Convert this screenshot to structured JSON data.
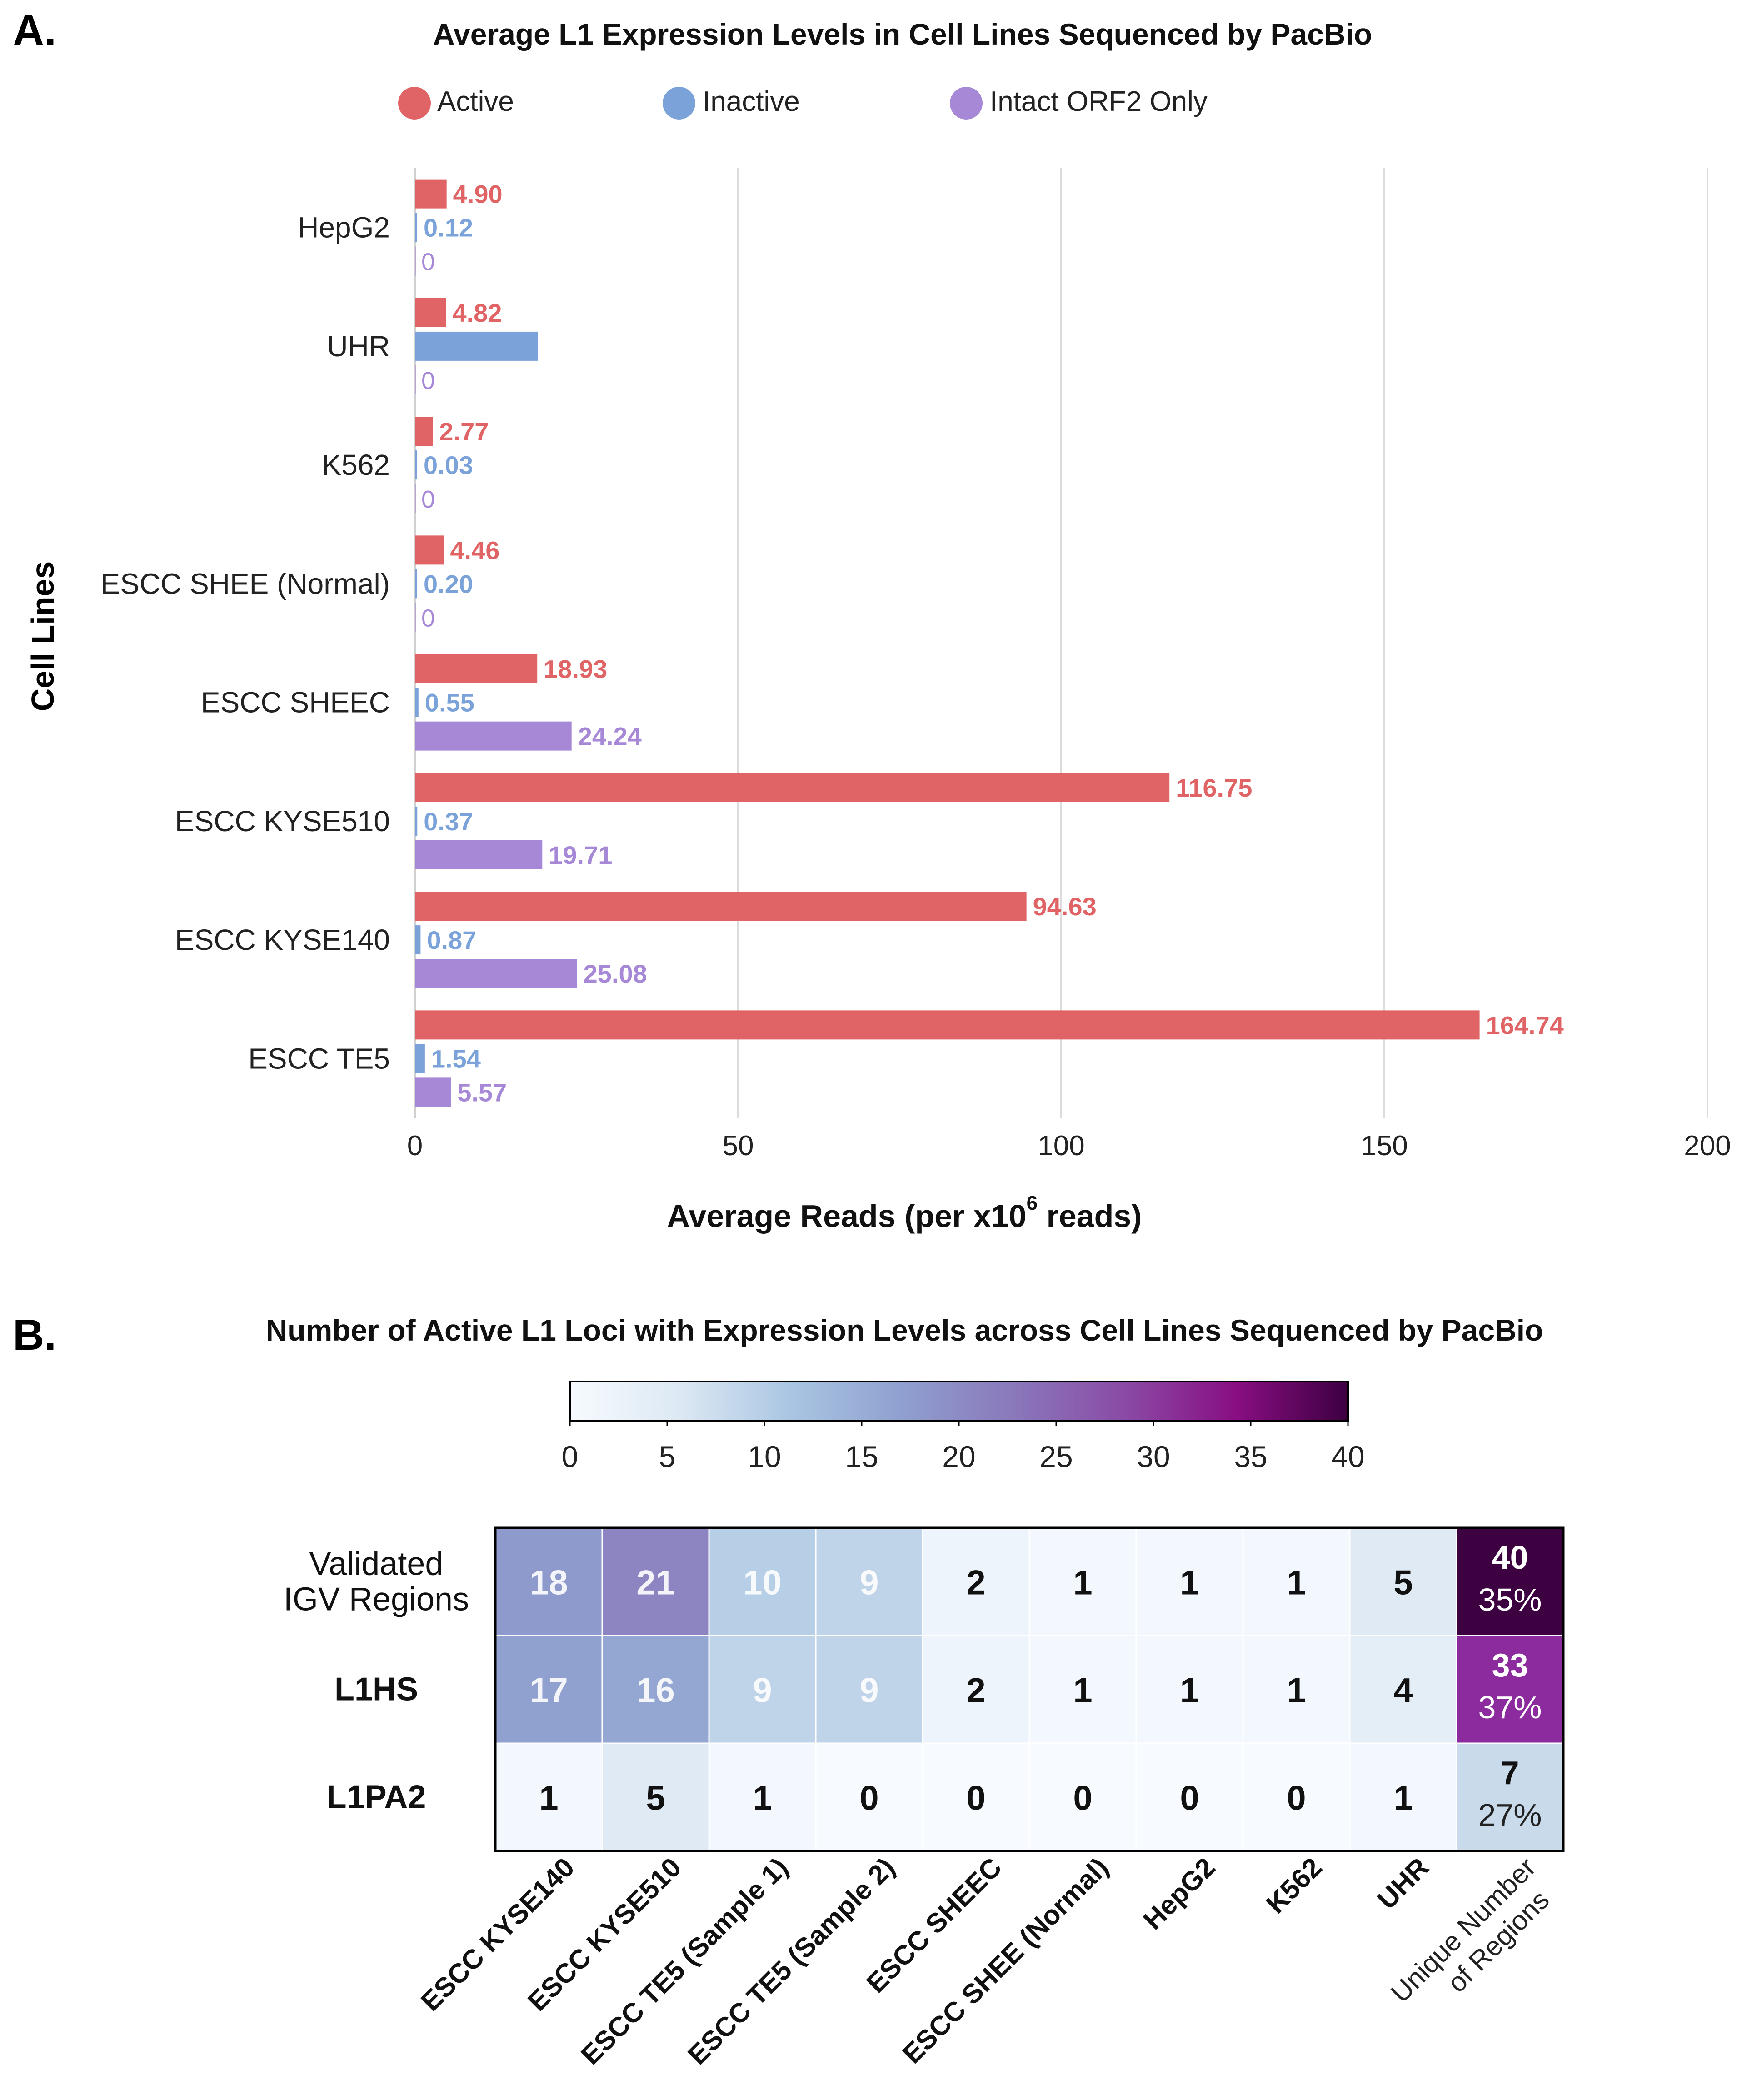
{
  "panel_a": {
    "letter": "A.",
    "chart_data": {
      "type": "bar",
      "orientation": "horizontal",
      "title": "Average L1 Expression Levels in Cell Lines Sequenced by PacBio",
      "xlabel_main": "Average Reads (per x10",
      "xlabel_sup": "6",
      "xlabel_tail": " reads)",
      "ylabel": "Cell Lines",
      "xlim": [
        0,
        200
      ],
      "xticks": [
        "0",
        "50",
        "100",
        "150",
        "200"
      ],
      "grid": "vertical",
      "legend_position": "top",
      "categories": [
        "HepG2",
        "UHR",
        "K562",
        "ESCC SHEE (Normal)",
        "ESCC SHEEC",
        "ESCC KYSE510",
        "ESCC KYSE140",
        "ESCC TE5"
      ],
      "series": [
        {
          "name": "Active",
          "color": "#e06466",
          "values": [
            4.9,
            4.82,
            2.77,
            4.46,
            18.93,
            116.75,
            94.63,
            164.74
          ],
          "labels": [
            "4.90",
            "4.82",
            "2.77",
            "4.46",
            "18.93",
            "116.75",
            "94.63",
            "164.74"
          ]
        },
        {
          "name": "Inactive",
          "color": "#7ba3d9",
          "values": [
            0.12,
            19.0,
            0.03,
            0.2,
            0.55,
            0.37,
            0.87,
            1.54
          ],
          "labels": [
            "0.12",
            "",
            "0.03",
            "0.20",
            "0.55",
            "0.37",
            "0.87",
            "1.54"
          ]
        },
        {
          "name": "Intact ORF2 Only",
          "color": "#a688d6",
          "values": [
            0,
            0,
            0,
            0,
            24.24,
            19.71,
            25.08,
            5.57
          ],
          "labels": [
            "0",
            "0",
            "0",
            "0",
            "24.24",
            "19.71",
            "25.08",
            "5.57"
          ]
        }
      ]
    }
  },
  "panel_b": {
    "letter": "B.",
    "chart_data": {
      "type": "heatmap",
      "title": "Number of Active L1 Loci with Expression Levels across Cell Lines Sequenced by PacBio",
      "colorbar": {
        "range": [
          0,
          40
        ],
        "ticks": [
          "0",
          "5",
          "10",
          "15",
          "20",
          "25",
          "30",
          "35",
          "40"
        ],
        "stops": [
          "#f7fbff",
          "#dce8f3",
          "#a9c5e2",
          "#8f9fcf",
          "#8a78bb",
          "#8a4aa5",
          "#880e82",
          "#3d0041"
        ]
      },
      "rows": [
        {
          "label_lines": [
            "Validated",
            "IGV Regions"
          ],
          "bold": false
        },
        {
          "label_lines": [
            "L1HS"
          ],
          "bold": true
        },
        {
          "label_lines": [
            "L1PA2"
          ],
          "bold": true
        }
      ],
      "columns": [
        "ESCC KYSE140",
        "ESCC KYSE510",
        "ESCC TE5 (Sample 1)",
        "ESCC TE5 (Sample 2)",
        "ESCC SHEEC",
        "ESCC SHEE (Normal)",
        "HepG2",
        "K562",
        "UHR"
      ],
      "values": [
        [
          18,
          21,
          10,
          9,
          2,
          1,
          1,
          1,
          5
        ],
        [
          17,
          16,
          9,
          9,
          2,
          1,
          1,
          1,
          4
        ],
        [
          1,
          5,
          1,
          0,
          0,
          0,
          0,
          0,
          1
        ]
      ],
      "summary_column": {
        "label_lines": [
          "Unique Number",
          "of Regions"
        ],
        "counts": [
          40,
          33,
          7
        ],
        "percents": [
          "35%",
          "37%",
          "27%"
        ],
        "colors": [
          "#3d0041",
          "#8b2b9d",
          "#c9daea"
        ]
      }
    }
  }
}
